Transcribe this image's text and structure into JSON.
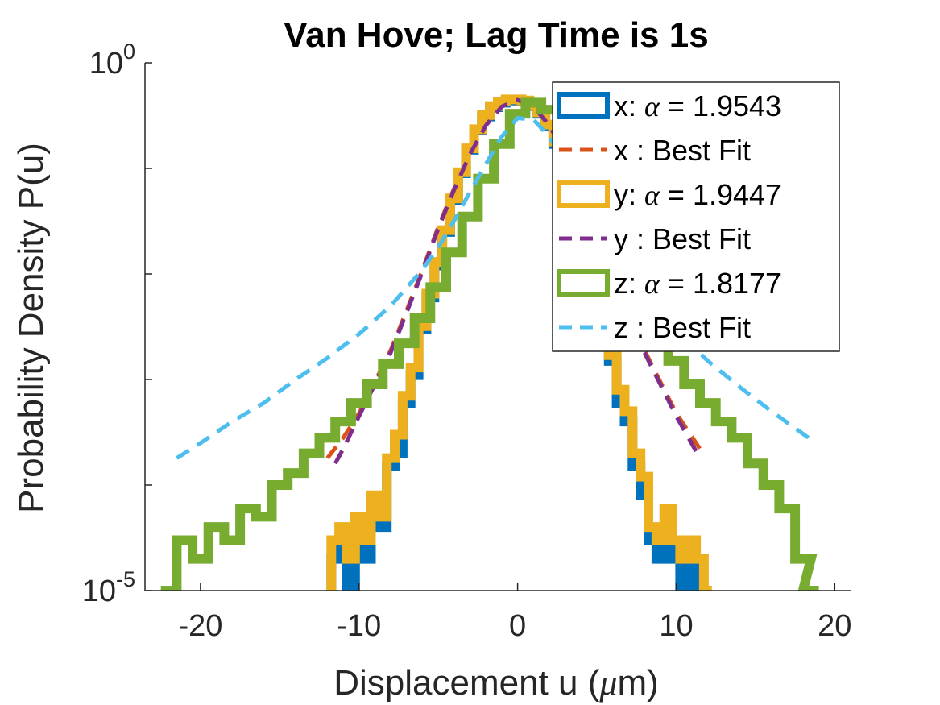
{
  "chart_data": {
    "type": "line",
    "title": "Van Hove; Lag Time is 1s",
    "xlabel": "Displacement u (μm)",
    "xlabel_parts": [
      "Displacement u (",
      "μ",
      "m)"
    ],
    "ylabel": "Probability Density P(u)",
    "xlim": [
      -23.5,
      21
    ],
    "ylim": [
      1e-05,
      1
    ],
    "yscale": "log",
    "xticks": [
      -20,
      -10,
      0,
      10,
      20
    ],
    "xtick_labels": [
      "-20",
      "-10",
      "0",
      "10",
      "20"
    ],
    "ytick_labels": [
      {
        "base": "10",
        "exp": "-5"
      },
      {
        "base": "10",
        "exp": "0"
      }
    ],
    "grid": false,
    "legend_position": "top-right",
    "series": [
      {
        "name": "x: α = 1.9543",
        "label_pre": "x: ",
        "label_greek": "α",
        "label_post": " = 1.9543",
        "kind": "hist",
        "color": "#0072BD",
        "alpha": 1.9543,
        "x": [
          -11.5,
          -11,
          -10.5,
          -10,
          -9.5,
          -9,
          -8.5,
          -8,
          -7.5,
          -7,
          -6.5,
          -6,
          -5.5,
          -5,
          -4.5,
          -4,
          -3.5,
          -3,
          -2.5,
          -2,
          -1.5,
          -1,
          -0.5,
          0,
          0.5,
          1,
          1.5,
          2,
          2.5,
          3,
          3.5,
          4,
          4.5,
          5,
          5.5,
          6,
          6.5,
          7,
          7.5,
          8,
          8.5,
          9,
          9.5,
          10,
          10.5,
          11
        ],
        "y": [
          2e-05,
          3e-05,
          1e-05,
          4e-05,
          2e-05,
          6e-05,
          4e-05,
          0.00015,
          0.0002,
          0.0006,
          0.0011,
          0.003,
          0.006,
          0.012,
          0.025,
          0.05,
          0.09,
          0.15,
          0.23,
          0.31,
          0.38,
          0.42,
          0.44,
          0.44,
          0.43,
          0.39,
          0.33,
          0.25,
          0.17,
          0.1,
          0.055,
          0.028,
          0.014,
          0.007,
          0.0035,
          0.0015,
          0.0006,
          0.0004,
          0.00015,
          8e-05,
          3e-05,
          2e-05,
          4e-05,
          2e-05,
          1e-05,
          2e-05
        ]
      },
      {
        "name": "x : Best Fit",
        "kind": "fit",
        "color": "#D95319",
        "dash": "18 12",
        "x": [
          -12,
          -11,
          -10,
          -9,
          -8,
          -7,
          -6,
          -5,
          -4,
          -3,
          -2,
          -1,
          0,
          1,
          2,
          3,
          4,
          5,
          6,
          7,
          8,
          9,
          10,
          11.5
        ],
        "y": [
          0.00018,
          0.00028,
          0.00048,
          0.00095,
          0.0019,
          0.0045,
          0.011,
          0.028,
          0.065,
          0.14,
          0.26,
          0.39,
          0.45,
          0.39,
          0.26,
          0.14,
          0.065,
          0.028,
          0.011,
          0.0045,
          0.0019,
          0.00095,
          0.00048,
          0.00022
        ]
      },
      {
        "name": "y: α = 1.9447",
        "label_pre": "y: ",
        "label_greek": "α",
        "label_post": " = 1.9447",
        "kind": "hist",
        "color": "#EDB120",
        "alpha": 1.9447,
        "x": [
          -11.5,
          -11,
          -10.5,
          -10,
          -9.5,
          -9,
          -8.5,
          -8,
          -7.5,
          -7,
          -6.5,
          -6,
          -5.5,
          -5,
          -4.5,
          -4,
          -3.5,
          -3,
          -2.5,
          -2,
          -1.5,
          -1,
          -0.5,
          0,
          0.5,
          1,
          1.5,
          2,
          2.5,
          3,
          3.5,
          4,
          4.5,
          5,
          5.5,
          6,
          6.5,
          7,
          7.5,
          8,
          8.5,
          9,
          9.5,
          10,
          10.5,
          11,
          11.5,
          12
        ],
        "y": [
          3e-05,
          4e-05,
          2e-05,
          5e-05,
          3e-05,
          8e-05,
          5e-05,
          0.00018,
          0.0003,
          0.0007,
          0.0013,
          0.0032,
          0.0065,
          0.013,
          0.026,
          0.052,
          0.092,
          0.155,
          0.235,
          0.32,
          0.39,
          0.43,
          0.45,
          0.45,
          0.44,
          0.4,
          0.34,
          0.26,
          0.18,
          0.105,
          0.058,
          0.03,
          0.015,
          0.0075,
          0.0038,
          0.0017,
          0.0008,
          0.0005,
          0.0002,
          0.00012,
          4e-05,
          3e-05,
          6e-05,
          3e-05,
          2e-05,
          3e-05,
          2e-05,
          1e-05
        ]
      },
      {
        "name": "y : Best Fit",
        "kind": "fit",
        "color": "#7E2F8E",
        "dash": "18 12",
        "x": [
          -11.5,
          -11,
          -10,
          -9,
          -8,
          -7,
          -6,
          -5,
          -4,
          -3,
          -2,
          -1,
          0,
          1,
          2,
          3,
          4,
          5,
          6,
          7,
          8,
          9,
          10,
          11.5
        ],
        "y": [
          0.00016,
          0.00022,
          0.00045,
          0.0009,
          0.0018,
          0.0043,
          0.0105,
          0.027,
          0.063,
          0.137,
          0.255,
          0.385,
          0.445,
          0.385,
          0.255,
          0.137,
          0.063,
          0.027,
          0.0105,
          0.0043,
          0.0018,
          0.0009,
          0.00045,
          0.00018
        ]
      },
      {
        "name": "z: α = 1.8177",
        "label_pre": "z: ",
        "label_greek": "α",
        "label_post": " = 1.8177",
        "kind": "hist",
        "color": "#77AC30",
        "alpha": 1.8177,
        "x": [
          -22,
          -21,
          -20,
          -19,
          -18,
          -17,
          -16,
          -15,
          -14,
          -13,
          -12,
          -11,
          -10,
          -9,
          -8,
          -7,
          -6,
          -5,
          -4,
          -3,
          -2,
          -1,
          0,
          1,
          2,
          3,
          4,
          5,
          6,
          7,
          8,
          9,
          10,
          11,
          12,
          13,
          14,
          15,
          16,
          17,
          18,
          18.5
        ],
        "y": [
          1e-05,
          3e-05,
          2e-05,
          4e-05,
          3e-05,
          6e-05,
          5e-05,
          0.0001,
          0.00013,
          0.0002,
          0.00028,
          0.0004,
          0.0006,
          0.0009,
          0.0014,
          0.0022,
          0.0038,
          0.0075,
          0.016,
          0.035,
          0.08,
          0.17,
          0.33,
          0.42,
          0.36,
          0.2,
          0.09,
          0.038,
          0.018,
          0.009,
          0.005,
          0.0028,
          0.0015,
          0.0009,
          0.0006,
          0.0004,
          0.00028,
          0.00016,
          0.0001,
          6e-05,
          2e-05,
          1e-05
        ]
      },
      {
        "name": "z : Best Fit",
        "kind": "fit",
        "color": "#4DBEEE",
        "dash": "18 12",
        "x": [
          -21.5,
          -20,
          -18,
          -16,
          -14,
          -12,
          -10,
          -8,
          -6,
          -5,
          -4,
          -3,
          -2,
          -1,
          0,
          1,
          2,
          3,
          4,
          5,
          6,
          8,
          10,
          12,
          14,
          16,
          18.5
        ],
        "y": [
          0.00018,
          0.00025,
          0.0004,
          0.0006,
          0.001,
          0.0016,
          0.0027,
          0.005,
          0.011,
          0.018,
          0.032,
          0.06,
          0.11,
          0.2,
          0.3,
          0.29,
          0.2,
          0.11,
          0.06,
          0.032,
          0.018,
          0.0062,
          0.0029,
          0.0015,
          0.00085,
          0.0005,
          0.00027
        ]
      }
    ]
  }
}
